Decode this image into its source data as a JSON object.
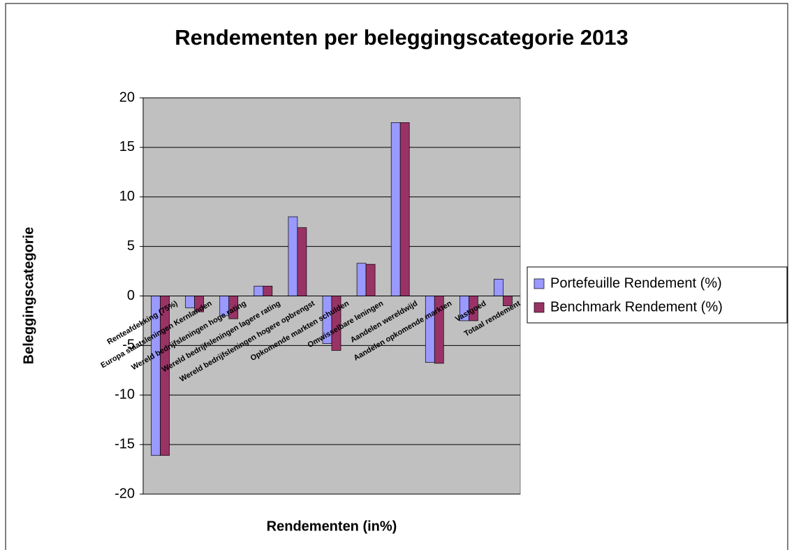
{
  "chart_data": {
    "type": "bar",
    "title": "Rendementen per beleggingscategorie 2013",
    "x_label": "Rendementen (in%)",
    "y_label": "Beleggingscategorie",
    "categories": [
      "Renteafdekking (75%)",
      "Europa staatsleningen Kernlanden",
      "Wereld bedrijfsleningen hoge rating",
      "Wereld bedrijfsleningen lagere rating",
      "Wereld bedrijfsleningen hogere opbrengst",
      "Opkomende markten schulden",
      "Omwisselbare leningen",
      "Aandelen wereldwijd",
      "Aandelen opkomende markten",
      "Vastgoed",
      "Totaal rendement"
    ],
    "series": [
      {
        "name": "Portefeuille  Rendement (%)",
        "color": "#9999ff",
        "values": [
          -16.1,
          -1.2,
          -2.0,
          1.0,
          8.0,
          -4.8,
          3.3,
          17.5,
          -6.7,
          -2.5,
          1.7
        ]
      },
      {
        "name": "Benchmark Rendement (%)",
        "color": "#993366",
        "values": [
          -16.1,
          -1.6,
          -2.3,
          1.0,
          6.9,
          -5.5,
          3.2,
          17.5,
          -6.8,
          -2.5,
          -1.0
        ]
      }
    ],
    "ylim": [
      -20,
      20
    ],
    "yticks": [
      -20,
      -15,
      -10,
      -5,
      0,
      5,
      10,
      15,
      20
    ],
    "grid": true,
    "legend": "right"
  }
}
